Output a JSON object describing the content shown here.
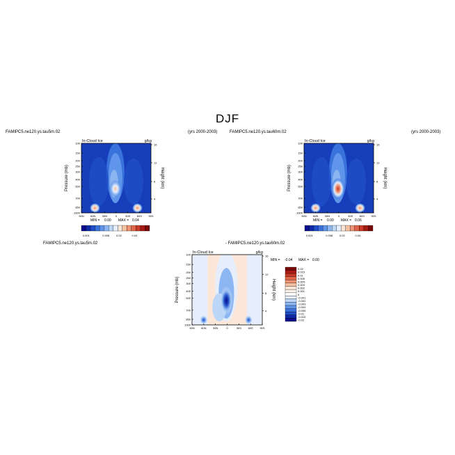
{
  "page": {
    "title": "DJF",
    "left_case": "FAMIPC5.ne120.ys.tau5m.02",
    "left_years": "(yrs 2000-2003)",
    "right_case": "FAMIPC5.ne120.ys.tau60m.02",
    "right_years": "(yrs 2000-2003)",
    "diff_case_a": "FAMIPC5.ne120.ys.tau5m.02",
    "diff_case_b": "- FAMIPC5.ne120.ys.tau60m.02"
  },
  "chart_data": [
    {
      "type": "heatmap",
      "panel": "top-left",
      "title": "In-Cloud Ice",
      "units": "g/kg",
      "xlabel": "",
      "ylabel": "Pressure (mb)",
      "ylabel_right": "Height (km)",
      "x_ticks": [
        "90N",
        "60N",
        "30N",
        "0",
        "30S",
        "60S",
        "90S"
      ],
      "y_ticks": [
        "100",
        "150",
        "200",
        "250",
        "300",
        "400",
        "500",
        "700",
        "850",
        "1000"
      ],
      "height_ticks": [
        "16",
        "12",
        "8",
        "4"
      ],
      "min_label": "MIN =",
      "min_value": "0.00",
      "max_label": "MAX =",
      "max_value": "0.04",
      "colorbar_labels": [
        "0.001",
        "0.008",
        "0.02",
        "0.04"
      ],
      "features": [
        {
          "lat": 2,
          "p": 450,
          "value": 0.02
        },
        {
          "lat": 55,
          "p": 850,
          "value": 0.02
        },
        {
          "lat": -55,
          "p": 850,
          "value": 0.04
        }
      ]
    },
    {
      "type": "heatmap",
      "panel": "top-right",
      "title": "In-Cloud Ice",
      "units": "g/kg",
      "xlabel": "",
      "ylabel": "Pressure (mb)",
      "ylabel_right": "Height (km)",
      "x_ticks": [
        "90N",
        "60N",
        "30N",
        "0",
        "30S",
        "60S",
        "90S"
      ],
      "y_ticks": [
        "100",
        "150",
        "200",
        "250",
        "300",
        "400",
        "500",
        "700",
        "850",
        "1000"
      ],
      "height_ticks": [
        "16",
        "12",
        "8",
        "4"
      ],
      "min_label": "MIN =",
      "min_value": "0.00",
      "max_label": "MAX =",
      "max_value": "0.06",
      "colorbar_labels": [
        "0.001",
        "0.008",
        "0.02",
        "0.04"
      ],
      "features": [
        {
          "lat": 2,
          "p": 450,
          "value": 0.06
        },
        {
          "lat": 60,
          "p": 850,
          "value": 0.04
        },
        {
          "lat": -55,
          "p": 850,
          "value": 0.04
        }
      ]
    },
    {
      "type": "heatmap",
      "panel": "bottom-difference",
      "title": "In-Cloud Ice",
      "units": "g/kg",
      "xlabel": "",
      "ylabel": "Pressure (mb)",
      "ylabel_right": "Height (km)",
      "x_ticks": [
        "90N",
        "60N",
        "30N",
        "0",
        "30S",
        "60S",
        "90S"
      ],
      "y_ticks": [
        "100",
        "150",
        "200",
        "250",
        "300",
        "400",
        "500",
        "700",
        "850",
        "1000"
      ],
      "height_ticks": [
        "16",
        "12",
        "8",
        "4"
      ],
      "min_label": "MIN =",
      "min_value": "-0.04",
      "max_label": "MAX =",
      "max_value": "0.00",
      "colorbar_labels": [
        "0.02",
        "0.015",
        "0.01",
        "0.005",
        "0.004",
        "0.003",
        "0.002",
        "0.001",
        "0",
        "-0.001",
        "-0.002",
        "-0.003",
        "-0.004",
        "-0.005",
        "-0.01",
        "-0.015",
        "-0.02"
      ],
      "features": [
        {
          "lat": 2,
          "p": 450,
          "value": -0.04
        },
        {
          "lat": 60,
          "p": 850,
          "value": -0.01
        },
        {
          "lat": -55,
          "p": 850,
          "value": -0.01
        }
      ]
    }
  ],
  "colors": {
    "top_scale": [
      "#0a0a8c",
      "#0f2aa8",
      "#1f4fc8",
      "#3a72dc",
      "#5f95ea",
      "#8cb6f2",
      "#bcd6f8",
      "#e6eefb",
      "#fbe6d8",
      "#f6c1a2",
      "#ee9474",
      "#e06648",
      "#c93a28",
      "#a81a14",
      "#7a0808"
    ],
    "diff_scale": [
      "#7a0808",
      "#a81a14",
      "#c93a28",
      "#e06648",
      "#ee9474",
      "#f6c1a2",
      "#fbe6d8",
      "#fdf3ea",
      "#ffffff",
      "#e6eefb",
      "#bcd6f8",
      "#8cb6f2",
      "#5f95ea",
      "#3a72dc",
      "#1f4fc8",
      "#0f2aa8",
      "#0a0a8c"
    ]
  }
}
